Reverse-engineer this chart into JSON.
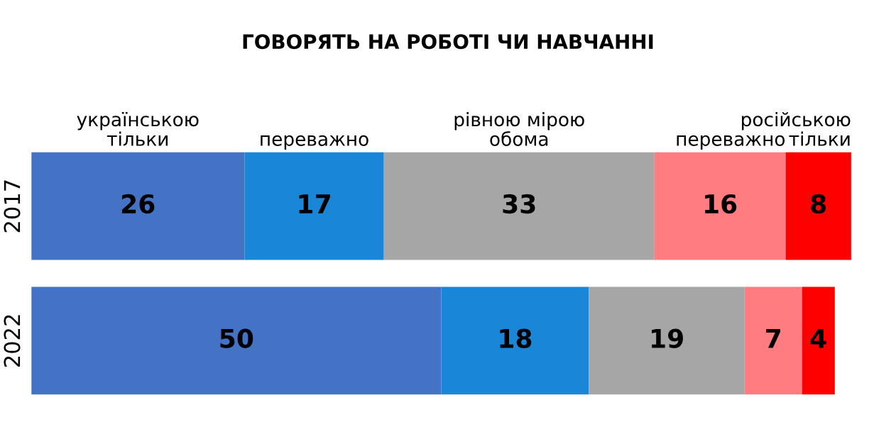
{
  "chart_data": {
    "type": "bar",
    "orientation": "horizontal",
    "stacked": true,
    "title": "ГОВОРЯТЬ НА РОБОТІ ЧИ НАВЧАННІ",
    "categories": [
      "2017",
      "2022"
    ],
    "xlim": [
      0,
      100
    ],
    "tick_labels": "y",
    "legend": "top",
    "data_labels": true,
    "series": [
      {
        "name": "українською\nтільки",
        "color": "#4472c4",
        "values": [
          26,
          50
        ]
      },
      {
        "name": "переважно",
        "color": "#1a86d8",
        "values": [
          17,
          18
        ]
      },
      {
        "name": "рівною мірою\nобома",
        "color": "#a6a6a6",
        "values": [
          33,
          19
        ]
      },
      {
        "name": "переважно",
        "color": "#ff7c80",
        "values": [
          16,
          7
        ]
      },
      {
        "name": "російською\nтільки",
        "color": "#ff0000",
        "values": [
          8,
          4
        ]
      }
    ]
  }
}
